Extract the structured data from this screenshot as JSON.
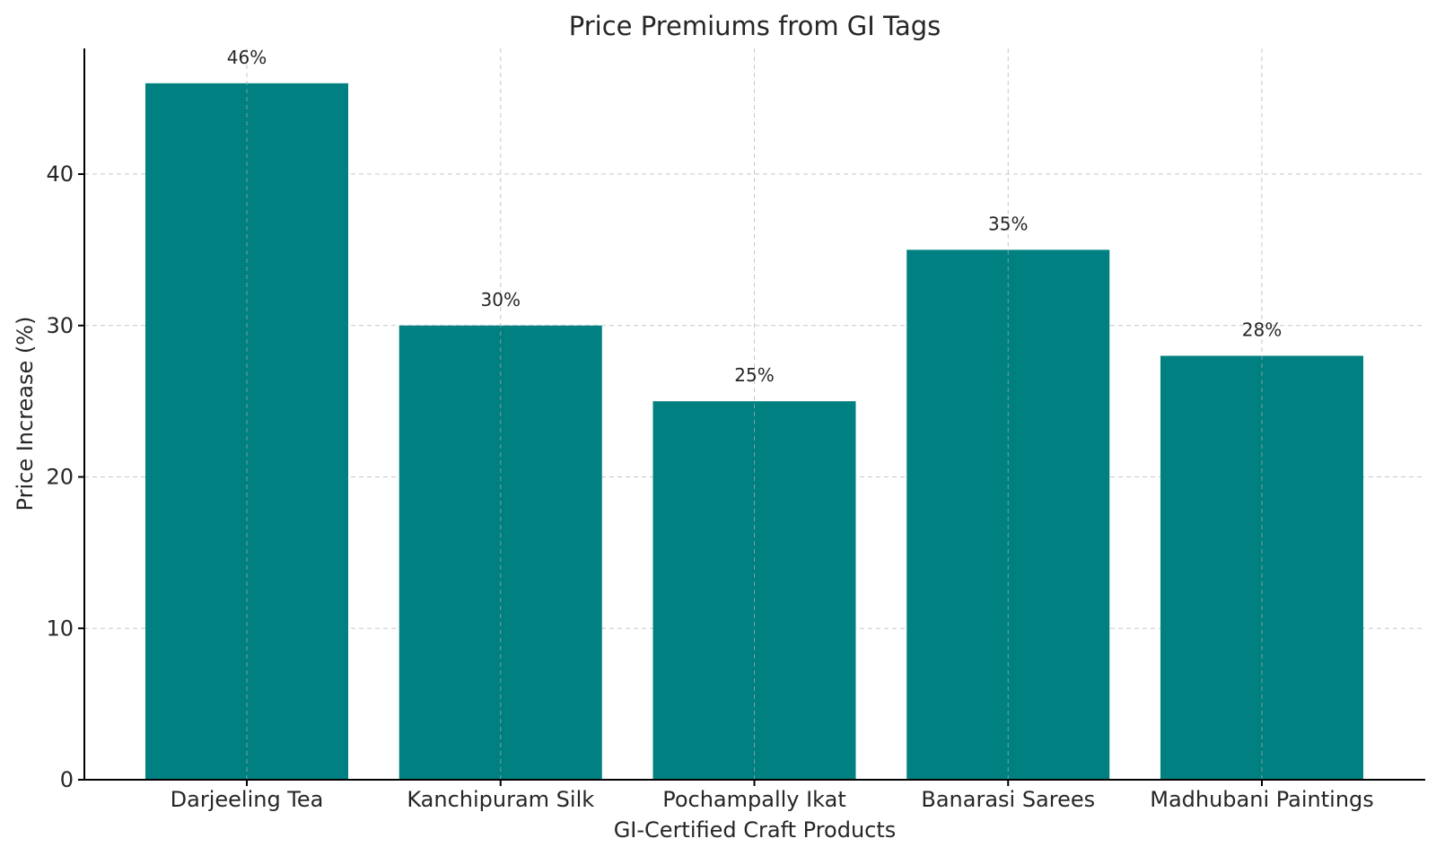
{
  "chart_data": {
    "type": "bar",
    "title": "Price Premiums from GI Tags",
    "xlabel": "GI-Certified Craft Products",
    "ylabel": "Price Increase (%)",
    "categories": [
      "Darjeeling Tea",
      "Kanchipuram Silk",
      "Pochampally Ikat",
      "Banarasi Sarees",
      "Madhubani Paintings"
    ],
    "values": [
      46,
      30,
      25,
      35,
      28
    ],
    "data_labels": [
      "46%",
      "30%",
      "25%",
      "35%",
      "28%"
    ],
    "ylim": [
      0,
      48.3
    ],
    "yticks": [
      0,
      10,
      20,
      30,
      40
    ],
    "grid": true,
    "bar_color": "#008080"
  }
}
